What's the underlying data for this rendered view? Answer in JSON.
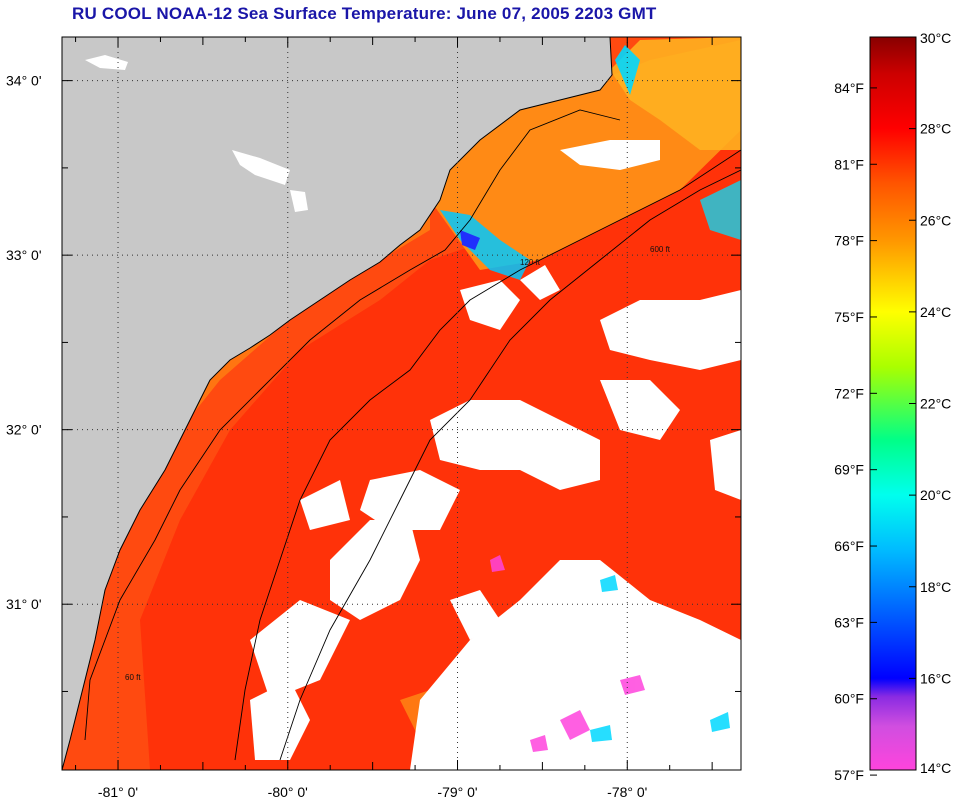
{
  "title": "RU COOL  NOAA-12  Sea Surface Temperature:  June 07, 2005 2203 GMT",
  "map": {
    "lon_range": [
      -81.33,
      -77.33
    ],
    "lat_range": [
      30.05,
      34.25
    ],
    "lat_ticks": [
      {
        "value": 34,
        "label": "34° 0'"
      },
      {
        "value": 33,
        "label": "33° 0'"
      },
      {
        "value": 32,
        "label": "32° 0'"
      },
      {
        "value": 31,
        "label": "31° 0'"
      }
    ],
    "lon_ticks": [
      {
        "value": -81,
        "label": "-81° 0'"
      },
      {
        "value": -80,
        "label": "-80° 0'"
      },
      {
        "value": -79,
        "label": "-79° 0'"
      },
      {
        "value": -78,
        "label": "-78° 0'"
      }
    ],
    "grid": "dotted",
    "colors": {
      "land": "#c8c8c8",
      "cloud": "#ffffff",
      "coast": "#000000"
    },
    "contour_labels": [
      "60 ft",
      "120 ft",
      "600 ft"
    ]
  },
  "colorbar": {
    "celsius": [
      {
        "value": 30,
        "label": "30°C"
      },
      {
        "value": 28,
        "label": "28°C"
      },
      {
        "value": 26,
        "label": "26°C"
      },
      {
        "value": 24,
        "label": "24°C"
      },
      {
        "value": 22,
        "label": "22°C"
      },
      {
        "value": 20,
        "label": "20°C"
      },
      {
        "value": 18,
        "label": "18°C"
      },
      {
        "value": 16,
        "label": "16°C"
      },
      {
        "value": 14,
        "label": "14°C"
      }
    ],
    "fahrenheit": [
      {
        "value": 84,
        "label": "84°F"
      },
      {
        "value": 81,
        "label": "81°F"
      },
      {
        "value": 78,
        "label": "78°F"
      },
      {
        "value": 75,
        "label": "75°F"
      },
      {
        "value": 72,
        "label": "72°F"
      },
      {
        "value": 69,
        "label": "69°F"
      },
      {
        "value": 66,
        "label": "66°F"
      },
      {
        "value": 63,
        "label": "63°F"
      },
      {
        "value": 60,
        "label": "60°F"
      },
      {
        "value": 57,
        "label": "57°F"
      }
    ],
    "range_c": [
      14,
      30
    ],
    "stops": [
      "#ff44dd",
      "#8a2be2",
      "#0000ff",
      "#0099ff",
      "#00e5ff",
      "#00ff88",
      "#aaff00",
      "#ffff00",
      "#ffaa00",
      "#ff6600",
      "#ff0000",
      "#990000"
    ]
  }
}
